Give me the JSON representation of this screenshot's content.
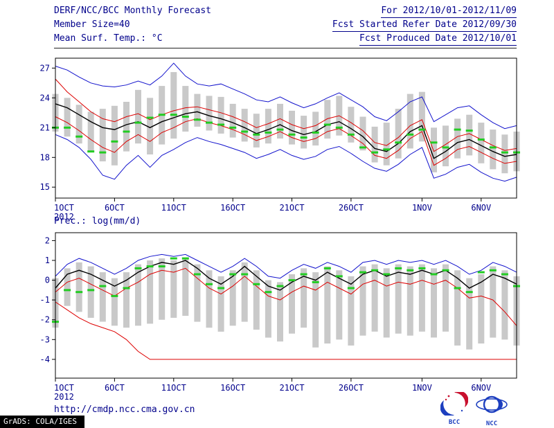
{
  "header": {
    "left": [
      "DERF/NCC/BCC Monthly Forecast",
      "Member Size=40",
      "Mean Surf. Temp.: °C"
    ],
    "right": [
      "For 2012/10/01-2012/11/09",
      "Fcst Started Refer Date 2012/09/30",
      "Fcst Produced Date 2012/10/01"
    ]
  },
  "prec_label": "Prec.: log(mm/d)",
  "footer": {
    "url": "http://cmdp.ncc.cma.gov.cn",
    "grads": "GrADS: COLA/IGES",
    "bcc_label": "BCC",
    "ncc_label": "NCC"
  },
  "colors": {
    "text": "#00008b",
    "envelope_blue": "#1111cc",
    "quartile_red": "#dd0000",
    "mean_black": "#000000",
    "obs_green": "#22cc22",
    "spread_gray": "#c9c9c9"
  },
  "chart_data": [
    {
      "type": "line",
      "label": "Mean Surf. Temp.: °C",
      "days": 40,
      "period": "2012/10/01-2012/11/09",
      "ylim": [
        13.9,
        28.0
      ],
      "y_ticks": [
        27,
        24,
        21,
        18,
        15
      ],
      "x_ticks": [
        {
          "day": 1,
          "label": "1OCT",
          "sub": "2012"
        },
        {
          "day": 6,
          "label": "6OCT"
        },
        {
          "day": 11,
          "label": "11OCT"
        },
        {
          "day": 16,
          "label": "16OCT"
        },
        {
          "day": 21,
          "label": "21OCT"
        },
        {
          "day": 26,
          "label": "26OCT"
        },
        {
          "day": 32,
          "label": "1NOV"
        },
        {
          "day": 37,
          "label": "6NOV"
        }
      ],
      "bars": {
        "name": "ensemble-spread",
        "color": "#c9c9c9",
        "high": [
          24.4,
          24.0,
          23.3,
          22.6,
          22.9,
          23.2,
          23.6,
          24.8,
          24.0,
          25.2,
          26.6,
          25.2,
          24.4,
          24.2,
          24.1,
          23.4,
          22.9,
          22.4,
          22.9,
          23.4,
          22.7,
          22.2,
          22.6,
          23.8,
          24.2,
          23.1,
          22.1,
          21.1,
          21.5,
          22.9,
          24.4,
          24.6,
          21.0,
          21.2,
          21.9,
          22.3,
          21.5,
          20.8,
          20.3,
          20.6
        ],
        "low": [
          20.6,
          20.1,
          19.4,
          18.5,
          17.6,
          17.2,
          18.6,
          19.4,
          18.3,
          19.3,
          19.9,
          20.6,
          21.1,
          20.7,
          20.4,
          20.0,
          19.6,
          19.0,
          19.4,
          19.9,
          19.3,
          18.9,
          19.2,
          19.9,
          20.2,
          19.5,
          18.7,
          17.5,
          17.2,
          17.9,
          18.9,
          19.6,
          16.5,
          17.1,
          17.9,
          18.2,
          17.4,
          16.8,
          16.4,
          16.6
        ]
      },
      "series": [
        {
          "name": "envelope-max-blue",
          "color": "#1111cc",
          "width": 1,
          "values": [
            27.2,
            26.8,
            26.1,
            25.5,
            25.2,
            25.1,
            25.3,
            25.7,
            25.3,
            26.2,
            27.5,
            26.2,
            25.4,
            25.2,
            25.4,
            24.9,
            24.4,
            23.8,
            23.6,
            24.1,
            23.5,
            23.0,
            23.4,
            24.0,
            24.5,
            23.8,
            23.1,
            22.1,
            21.7,
            22.6,
            23.6,
            24.1,
            21.6,
            22.3,
            23.0,
            23.2,
            22.3,
            21.5,
            20.9,
            21.2
          ]
        },
        {
          "name": "upper-red",
          "color": "#dd0000",
          "width": 1,
          "values": [
            25.9,
            24.6,
            23.6,
            22.6,
            21.9,
            21.6,
            22.1,
            22.4,
            21.8,
            22.3,
            22.7,
            23.0,
            23.1,
            22.8,
            22.5,
            22.1,
            21.6,
            21.0,
            21.4,
            21.9,
            21.3,
            20.9,
            21.2,
            21.9,
            22.2,
            21.5,
            20.7,
            19.5,
            19.2,
            20.0,
            21.2,
            21.8,
            18.6,
            19.3,
            20.1,
            20.4,
            19.8,
            19.2,
            18.7,
            18.9
          ]
        },
        {
          "name": "ensemble-mean-black",
          "color": "#000000",
          "width": 1.4,
          "values": [
            23.4,
            23.0,
            22.3,
            21.6,
            21.0,
            20.8,
            21.3,
            21.6,
            21.0,
            21.6,
            22.0,
            22.4,
            22.6,
            22.2,
            21.9,
            21.5,
            21.0,
            20.4,
            20.8,
            21.3,
            20.7,
            20.3,
            20.6,
            21.3,
            21.6,
            20.9,
            20.1,
            18.9,
            18.6,
            19.4,
            20.6,
            21.2,
            17.9,
            18.6,
            19.5,
            19.8,
            19.2,
            18.6,
            18.1,
            18.3
          ]
        },
        {
          "name": "lower-red",
          "color": "#dd0000",
          "width": 1,
          "values": [
            22.1,
            21.5,
            20.7,
            19.8,
            19.0,
            18.5,
            19.6,
            20.3,
            19.6,
            20.5,
            21.0,
            21.6,
            21.9,
            21.5,
            21.2,
            20.8,
            20.3,
            19.7,
            20.1,
            20.6,
            20.0,
            19.6,
            19.9,
            20.6,
            20.9,
            20.2,
            19.4,
            18.2,
            17.9,
            18.7,
            19.9,
            20.6,
            17.2,
            17.9,
            18.8,
            19.1,
            18.5,
            17.9,
            17.4,
            17.6
          ]
        },
        {
          "name": "envelope-min-blue",
          "color": "#1111cc",
          "width": 1,
          "values": [
            20.3,
            19.8,
            19.0,
            17.8,
            16.2,
            15.8,
            17.2,
            18.2,
            17.0,
            18.2,
            18.8,
            19.5,
            20.0,
            19.6,
            19.3,
            18.9,
            18.5,
            17.9,
            18.3,
            18.8,
            18.2,
            17.8,
            18.1,
            18.8,
            19.1,
            18.4,
            17.6,
            16.9,
            16.6,
            17.3,
            18.3,
            19.0,
            15.9,
            16.3,
            17.0,
            17.3,
            16.5,
            15.9,
            15.6,
            16.0
          ]
        }
      ],
      "markers": {
        "name": "observation-green-dashes",
        "color": "#22cc22",
        "values": [
          21.0,
          21.0,
          20.1,
          18.6,
          18.5,
          19.6,
          20.6,
          21.5,
          22.0,
          22.3,
          22.3,
          22.1,
          21.8,
          21.5,
          21.3,
          21.0,
          20.6,
          20.3,
          20.5,
          20.8,
          20.3,
          20.0,
          20.5,
          21.3,
          21.0,
          20.3,
          19.0,
          18.5,
          18.8,
          19.5,
          20.3,
          20.8,
          19.5,
          19.0,
          20.8,
          20.7,
          19.8,
          19.0,
          18.5,
          18.5
        ]
      }
    },
    {
      "type": "line",
      "label": "Prec.: log(mm/d)",
      "days": 40,
      "period": "2012/10/01-2012/11/09",
      "ylim": [
        -4.95,
        2.4
      ],
      "y_ticks": [
        2,
        1,
        0,
        -1,
        -2,
        -3,
        -4
      ],
      "x_ticks": [
        {
          "day": 1,
          "label": "1OCT",
          "sub": "2012"
        },
        {
          "day": 6,
          "label": "6OCT"
        },
        {
          "day": 11,
          "label": "11OCT"
        },
        {
          "day": 16,
          "label": "16OCT"
        },
        {
          "day": 21,
          "label": "21OCT"
        },
        {
          "day": 26,
          "label": "26OCT"
        },
        {
          "day": 32,
          "label": "1NOV"
        },
        {
          "day": 37,
          "label": "6NOV"
        }
      ],
      "bars": {
        "name": "ensemble-spread",
        "color": "#c9c9c9",
        "high": [
          0.1,
          0.6,
          0.9,
          0.7,
          0.4,
          0.1,
          0.4,
          0.8,
          1.0,
          1.1,
          1.0,
          1.1,
          0.8,
          0.5,
          0.2,
          0.5,
          0.9,
          0.5,
          0.0,
          -0.1,
          0.3,
          0.6,
          0.4,
          0.7,
          0.5,
          0.2,
          0.7,
          0.8,
          0.6,
          0.8,
          0.7,
          0.8,
          0.6,
          0.8,
          0.5,
          0.1,
          0.3,
          0.7,
          0.5,
          0.2
        ],
        "low": [
          -2.4,
          -1.3,
          -1.6,
          -1.9,
          -2.1,
          -2.3,
          -2.4,
          -2.3,
          -2.2,
          -2.0,
          -1.9,
          -1.8,
          -2.1,
          -2.4,
          -2.6,
          -2.3,
          -2.1,
          -2.5,
          -2.9,
          -3.1,
          -2.7,
          -2.4,
          -3.4,
          -3.2,
          -3.0,
          -3.3,
          -2.8,
          -2.6,
          -2.9,
          -2.7,
          -2.8,
          -2.6,
          -2.9,
          -2.6,
          -3.3,
          -3.5,
          -3.2,
          -2.9,
          -3.0,
          -3.3
        ]
      },
      "series": [
        {
          "name": "envelope-max-blue",
          "color": "#1111cc",
          "width": 1,
          "values": [
            0.2,
            0.8,
            1.1,
            0.9,
            0.6,
            0.3,
            0.6,
            1.0,
            1.2,
            1.3,
            1.2,
            1.3,
            1.0,
            0.7,
            0.4,
            0.7,
            1.1,
            0.7,
            0.2,
            0.1,
            0.5,
            0.8,
            0.6,
            0.9,
            0.7,
            0.4,
            0.9,
            1.0,
            0.8,
            1.0,
            0.9,
            1.0,
            0.8,
            1.0,
            0.7,
            0.3,
            0.5,
            0.9,
            0.7,
            0.4
          ]
        },
        {
          "name": "upper-red",
          "color": "#dd0000",
          "width": 1,
          "values": [
            -0.6,
            -0.1,
            0.1,
            -0.2,
            -0.5,
            -0.8,
            -0.4,
            -0.1,
            0.3,
            0.5,
            0.4,
            0.6,
            0.1,
            -0.4,
            -0.7,
            -0.3,
            0.2,
            -0.3,
            -0.8,
            -1.0,
            -0.6,
            -0.3,
            -0.5,
            -0.1,
            -0.4,
            -0.7,
            -0.2,
            0.0,
            -0.3,
            -0.1,
            -0.2,
            0.0,
            -0.2,
            0.0,
            -0.4,
            -0.9,
            -0.8,
            -1.0,
            -1.6,
            -2.3
          ]
        },
        {
          "name": "ensemble-mean-black",
          "color": "#000000",
          "width": 1.4,
          "values": [
            -0.4,
            0.3,
            0.5,
            0.3,
            0.0,
            -0.3,
            0.0,
            0.4,
            0.7,
            0.9,
            0.8,
            1.0,
            0.6,
            0.1,
            -0.2,
            0.2,
            0.7,
            0.2,
            -0.3,
            -0.5,
            -0.1,
            0.2,
            0.0,
            0.4,
            0.1,
            -0.2,
            0.3,
            0.5,
            0.2,
            0.4,
            0.3,
            0.5,
            0.3,
            0.5,
            0.1,
            -0.4,
            -0.1,
            0.3,
            0.1,
            -0.2
          ]
        },
        {
          "name": "lower-red",
          "color": "#dd0000",
          "width": 1,
          "values": [
            -1.1,
            -1.5,
            -1.9,
            -2.2,
            -2.4,
            -2.6,
            -3.0,
            -3.6,
            -4.0,
            -4.0,
            -4.0,
            -4.0,
            -4.0,
            -4.0,
            -4.0,
            -4.0,
            -4.0,
            -4.0,
            -4.0,
            -4.0,
            -4.0,
            -4.0,
            -4.0,
            -4.0,
            -4.0,
            -4.0,
            -4.0,
            -4.0,
            -4.0,
            -4.0,
            -4.0,
            -4.0,
            -4.0,
            -4.0,
            -4.0,
            -4.0,
            -4.0,
            -4.0,
            -4.0,
            -4.0
          ]
        }
      ],
      "markers": {
        "name": "observation-green-dashes",
        "color": "#22cc22",
        "values": [
          -2.1,
          -0.5,
          -0.6,
          -0.5,
          -0.3,
          -0.8,
          -0.4,
          0.6,
          0.7,
          0.7,
          1.1,
          1.1,
          0.3,
          -0.2,
          -0.4,
          0.3,
          0.3,
          -0.2,
          -0.6,
          -0.3,
          0.0,
          0.3,
          -0.1,
          0.6,
          0.2,
          -0.4,
          0.4,
          0.5,
          0.3,
          0.6,
          0.5,
          0.6,
          0.3,
          0.5,
          -0.4,
          -0.6,
          0.4,
          0.5,
          0.3,
          -0.3
        ]
      }
    }
  ]
}
